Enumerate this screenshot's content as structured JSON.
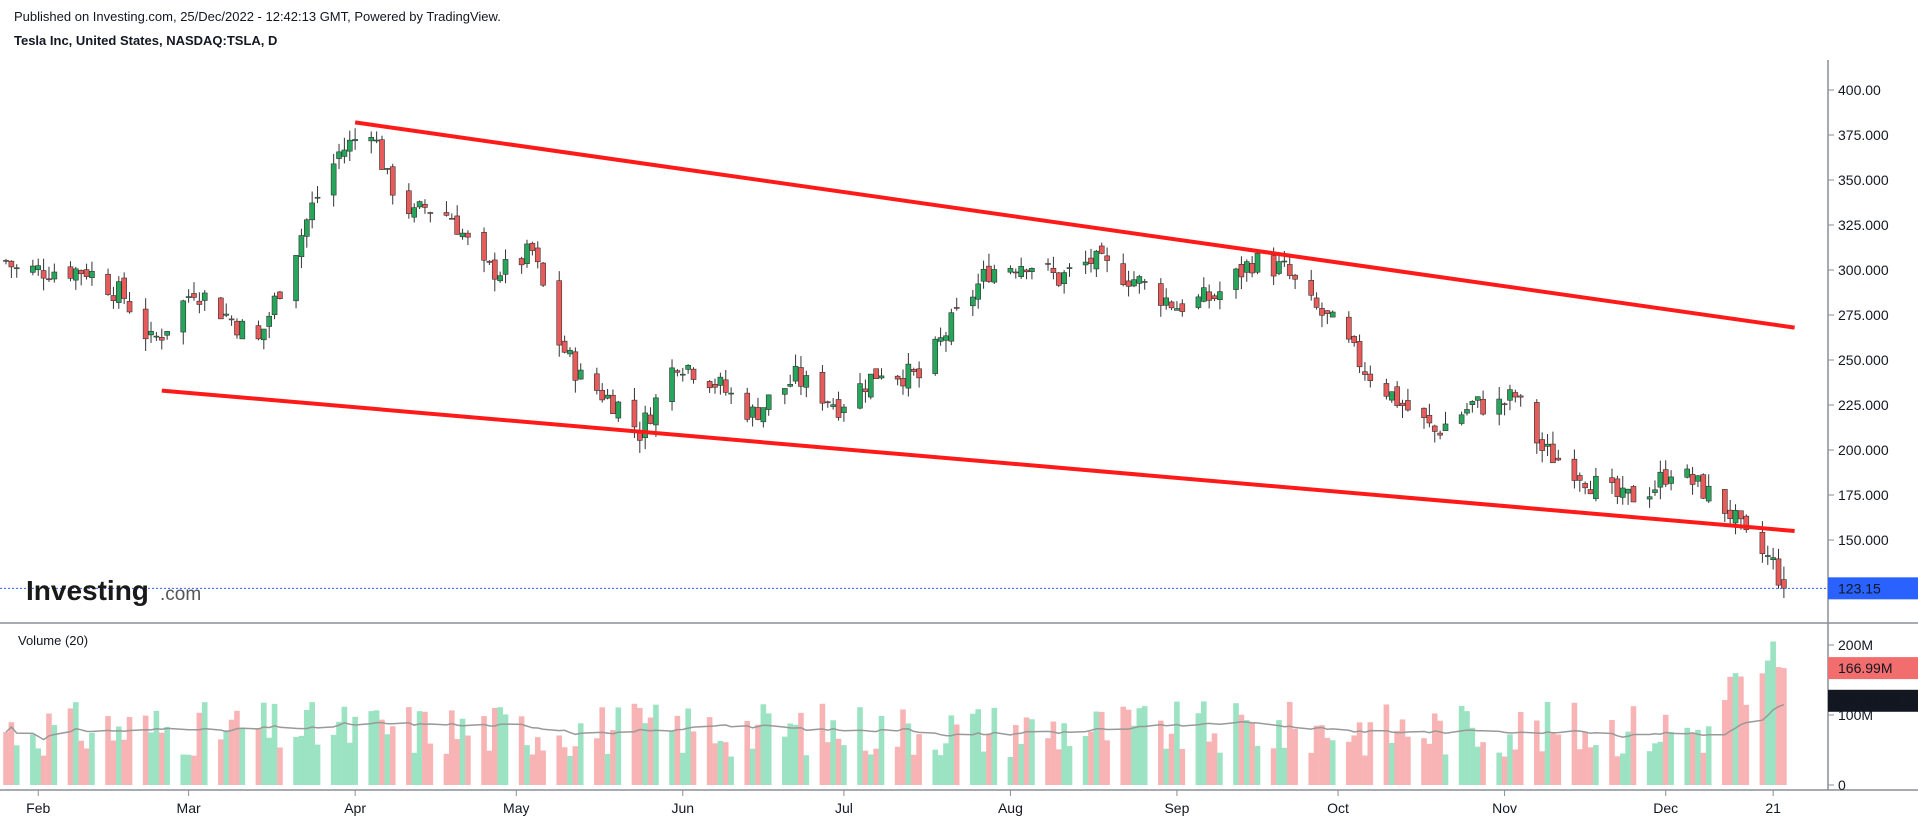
{
  "header": {
    "published": "Published on Investing.com, 25/Dec/2022 - 12:42:13 GMT, Powered by TradingView.",
    "instrument": "Tesla Inc, United States, NASDAQ:TSLA, D"
  },
  "logo": {
    "main": "Investing",
    "suffix": ".com"
  },
  "colors": {
    "up": "#26a65b",
    "down": "#e85b5b",
    "up_vol": "#9be3c2",
    "down_vol": "#f8b4b4",
    "trend": "#ff1a1a",
    "ma": "#999999",
    "last_price_tag": "#2962ff"
  },
  "chart_data": [
    {
      "type": "candlestick",
      "title": "Tesla Inc, United States, NASDAQ:TSLA, D",
      "y_axis": {
        "ticks": [
          "400.00",
          "375.000",
          "350.000",
          "325.000",
          "300.000",
          "275.000",
          "250.000",
          "225.000",
          "200.000",
          "175.000",
          "150.000"
        ],
        "range": [
          115,
          405
        ]
      },
      "x_axis": {
        "ticks": [
          "Feb",
          "Mar",
          "Apr",
          "May",
          "Jun",
          "Jul",
          "Aug",
          "Sep",
          "Oct",
          "Nov",
          "Dec",
          "21"
        ],
        "range": [
          "2022-01-26",
          "2022-12-26"
        ]
      },
      "last_price": "123.15",
      "trendlines": [
        {
          "from": [
            "2022-04-01",
            382
          ],
          "to": [
            "2022-12-25",
            268
          ]
        },
        {
          "from": [
            "2022-02-24",
            233
          ],
          "to": [
            "2022-12-25",
            155
          ]
        }
      ],
      "anchors": [
        [
          "2022-01-26",
          305
        ],
        [
          "2022-01-28",
          300
        ],
        [
          "2022-02-02",
          300
        ],
        [
          "2022-02-10",
          300
        ],
        [
          "2022-02-17",
          285
        ],
        [
          "2022-02-22",
          260
        ],
        [
          "2022-02-24",
          265
        ],
        [
          "2022-03-02",
          290
        ],
        [
          "2022-03-08",
          275
        ],
        [
          "2022-03-14",
          260
        ],
        [
          "2022-03-18",
          290
        ],
        [
          "2022-03-24",
          335
        ],
        [
          "2022-03-29",
          365
        ],
        [
          "2022-04-04",
          380
        ],
        [
          "2022-04-07",
          350
        ],
        [
          "2022-04-12",
          330
        ],
        [
          "2022-04-14",
          335
        ],
        [
          "2022-04-19,",
          330
        ],
        [
          "2022-04-25",
          300
        ],
        [
          "2022-04-29",
          300
        ],
        [
          "2022-05-04",
          310
        ],
        [
          "2022-05-09",
          260
        ],
        [
          "2022-05-13",
          240
        ],
        [
          "2022-05-20",
          225
        ],
        [
          "2022-05-24",
          210
        ],
        [
          "2022-05-31",
          250
        ],
        [
          "2022-06-06",
          240
        ],
        [
          "2022-06-14",
          220
        ],
        [
          "2022-06-22",
          240
        ],
        [
          "2022-06-30",
          225
        ],
        [
          "2022-07-08",
          245
        ],
        [
          "2022-07-15",
          240
        ],
        [
          "2022-07-21",
          270
        ],
        [
          "2022-07-28",
          300
        ],
        [
          "2022-08-04",
          305
        ],
        [
          "2022-08-10",
          295
        ],
        [
          "2022-08-16",
          305
        ],
        [
          "2022-08-24",
          295
        ],
        [
          "2022-09-01",
          280
        ],
        [
          "2022-09-08",
          285
        ],
        [
          "2022-09-15",
          305
        ],
        [
          "2022-09-21",
          300
        ],
        [
          "2022-09-26",
          280
        ],
        [
          "2022-09-30",
          270
        ],
        [
          "2022-10-06",
          245
        ],
        [
          "2022-10-13",
          225
        ],
        [
          "2022-10-19",
          210
        ],
        [
          "2022-10-26",
          225
        ],
        [
          "2022-10-31",
          225
        ],
        [
          "2022-11-03",
          230
        ],
        [
          "2022-11-08",
          200
        ],
        [
          "2022-11-14",
          190
        ],
        [
          "2022-11-18",
          180
        ],
        [
          "2022-11-23",
          172
        ],
        [
          "2022-11-29",
          180
        ],
        [
          "2022-12-02",
          190
        ],
        [
          "2022-12-08",
          178
        ],
        [
          "2022-12-13",
          165
        ],
        [
          "2022-12-16",
          150
        ],
        [
          "2022-12-21",
          137
        ],
        [
          "2022-12-23",
          123
        ]
      ]
    },
    {
      "type": "bar",
      "title": "Volume (20)",
      "y_axis": {
        "ticks": [
          "200M",
          "100M",
          "0"
        ],
        "range": [
          0,
          210
        ]
      },
      "last_volume": "166.99M",
      "ma_value": "120.313M"
    }
  ]
}
